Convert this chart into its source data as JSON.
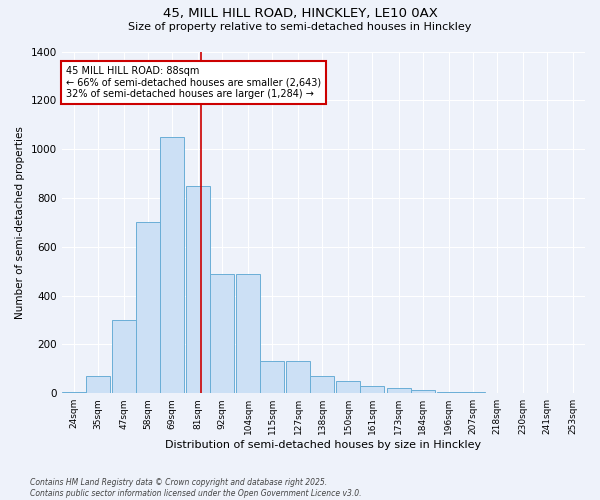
{
  "title_line1": "45, MILL HILL ROAD, HINCKLEY, LE10 0AX",
  "title_line2": "Size of property relative to semi-detached houses in Hinckley",
  "xlabel": "Distribution of semi-detached houses by size in Hinckley",
  "ylabel": "Number of semi-detached properties",
  "bins_left": [
    24,
    35,
    47,
    58,
    69,
    81,
    92,
    104,
    115,
    127,
    138,
    150,
    161,
    173,
    184,
    196,
    207,
    218,
    230,
    241,
    253
  ],
  "values": [
    5,
    70,
    300,
    700,
    1050,
    850,
    490,
    490,
    130,
    130,
    70,
    50,
    30,
    20,
    15,
    5,
    5,
    2,
    1,
    0,
    0
  ],
  "property_size": 88,
  "bar_color": "#cce0f5",
  "bar_edge_color": "#6aaed6",
  "vline_color": "#cc0000",
  "annotation_text": "45 MILL HILL ROAD: 88sqm\n← 66% of semi-detached houses are smaller (2,643)\n32% of semi-detached houses are larger (1,284) →",
  "annotation_box_color": "#cc0000",
  "background_color": "#eef2fa",
  "grid_color": "#ffffff",
  "ylim": [
    0,
    1400
  ],
  "yticks": [
    0,
    200,
    400,
    600,
    800,
    1000,
    1200,
    1400
  ],
  "footnote": "Contains HM Land Registry data © Crown copyright and database right 2025.\nContains public sector information licensed under the Open Government Licence v3.0."
}
